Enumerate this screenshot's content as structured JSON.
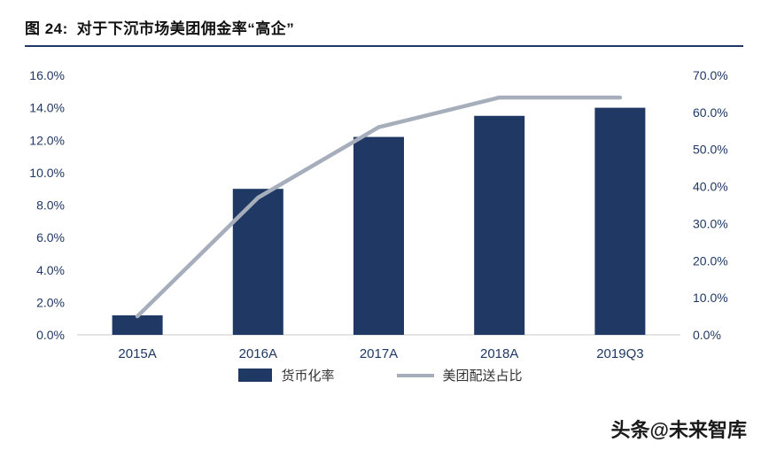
{
  "title": {
    "prefix": "图 24:",
    "text": "对于下沉市场美团佣金率“高企”"
  },
  "watermark": "头条@未来智库",
  "colors": {
    "bar": "#1F3864",
    "line": "#A6AEBB",
    "axis_text": "#1F3864",
    "title_rule": "#1F3864",
    "axis_line": "#C9C9C9"
  },
  "legend": {
    "bar_label": "货币化率",
    "line_label": "美团配送占比"
  },
  "chart_data": {
    "type": "bar",
    "subtype": "combo-bar-line-dual-axis",
    "title": "对于下沉市场美团佣金率“高企”",
    "categories": [
      "2015A",
      "2016A",
      "2017A",
      "2018A",
      "2019Q3"
    ],
    "series": [
      {
        "name": "货币化率",
        "type": "bar",
        "axis": "left",
        "unit": "%",
        "values": [
          1.2,
          9.0,
          12.2,
          13.5,
          14.0
        ]
      },
      {
        "name": "美团配送占比",
        "type": "line",
        "axis": "right",
        "unit": "%",
        "values": [
          5,
          37,
          56,
          64,
          64
        ]
      }
    ],
    "left_axis": {
      "min": 0,
      "max": 16,
      "step": 2,
      "tick_labels": [
        "0.0%",
        "2.0%",
        "4.0%",
        "6.0%",
        "8.0%",
        "10.0%",
        "12.0%",
        "14.0%",
        "16.0%"
      ]
    },
    "right_axis": {
      "min": 0,
      "max": 70,
      "step": 10,
      "tick_labels": [
        "0.0%",
        "10.0%",
        "20.0%",
        "30.0%",
        "40.0%",
        "50.0%",
        "60.0%",
        "70.0%"
      ]
    },
    "grid": false,
    "legend_position": "bottom"
  }
}
